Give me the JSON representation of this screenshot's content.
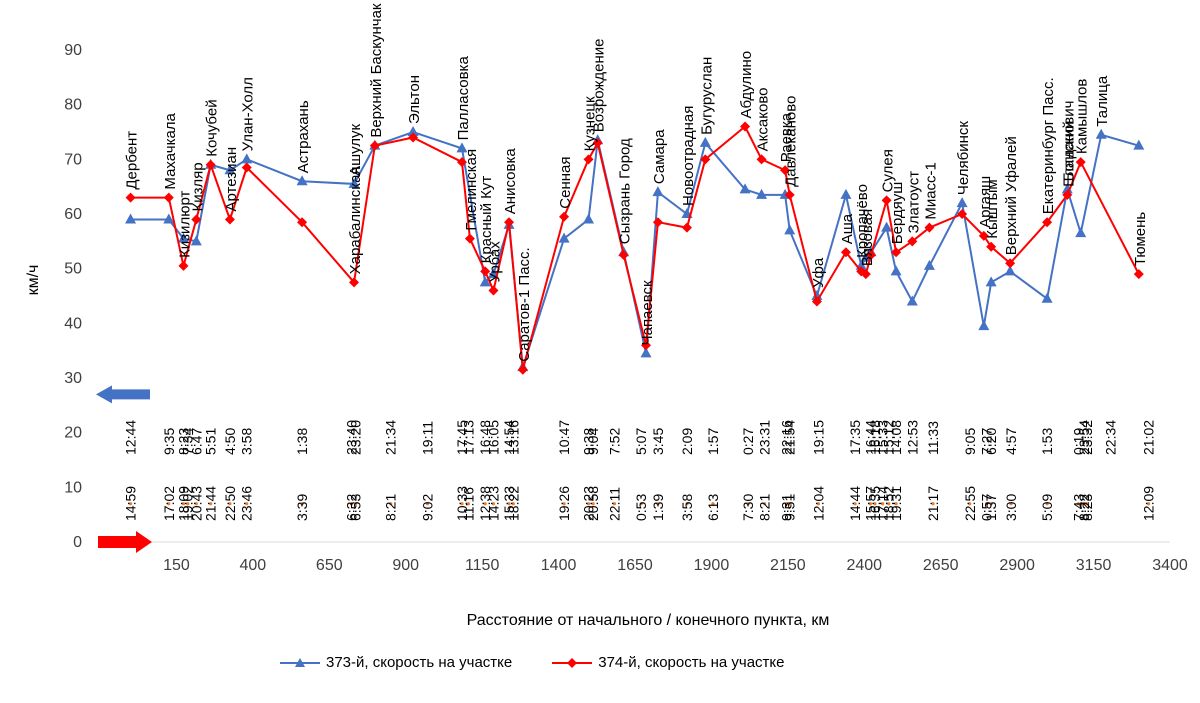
{
  "chart_data": {
    "type": "line",
    "title": "",
    "xlabel": "Расстояние от начального / конечного пункта, км",
    "ylabel": "км/ч",
    "xlim": [
      -100,
      3400
    ],
    "ylim": [
      0,
      90
    ],
    "xticks": [
      150,
      400,
      650,
      900,
      1150,
      1400,
      1650,
      1900,
      2150,
      2400,
      2650,
      2900,
      3150,
      3400
    ],
    "yticks": [
      0,
      10,
      20,
      30,
      40,
      50,
      60,
      70,
      80,
      90
    ],
    "grid": false,
    "legend": "bottom",
    "colors": {
      "373": "#4472C4",
      "374": "#FF0000",
      "time_373": "#000000",
      "time_374": "#ED7D31"
    },
    "series": [
      {
        "name": "373-й, скорость на участке",
        "marker": "triangle",
        "points": [
          [
            0,
            59
          ],
          [
            125,
            59
          ],
          [
            173,
            55.5
          ],
          [
            215,
            55
          ],
          [
            262,
            69
          ],
          [
            325,
            68
          ],
          [
            380,
            70
          ],
          [
            561,
            66
          ],
          [
            731,
            65.5
          ],
          [
            799,
            72.5
          ],
          [
            924,
            75
          ],
          [
            1084,
            72
          ],
          [
            1160,
            47.5
          ],
          [
            1187,
            49
          ],
          [
            1238,
            58
          ],
          [
            1283,
            32
          ],
          [
            1418,
            55.5
          ],
          [
            1498,
            59
          ],
          [
            1528,
            73.5
          ],
          [
            1613,
            53
          ],
          [
            1686,
            34.5
          ],
          [
            1725,
            64
          ],
          [
            1820,
            60
          ],
          [
            1880,
            73
          ],
          [
            2010,
            64.5
          ],
          [
            2064,
            63.5
          ],
          [
            2141,
            63.5
          ],
          [
            2156,
            57
          ],
          [
            2245,
            45
          ],
          [
            2340,
            63.5
          ],
          [
            2390,
            50.5
          ],
          [
            2405,
            52
          ],
          [
            2422,
            53
          ],
          [
            2473,
            57.5
          ],
          [
            2504,
            49.5
          ],
          [
            2557,
            44
          ],
          [
            2613,
            50.5
          ],
          [
            2720,
            62
          ],
          [
            2791,
            39.5
          ],
          [
            2815,
            47.5
          ],
          [
            2877,
            49.5
          ],
          [
            2998,
            44.5
          ],
          [
            3064,
            64.5
          ],
          [
            3108,
            56.5
          ],
          [
            3175,
            74.5
          ],
          [
            3298,
            72.5
          ]
        ]
      },
      {
        "name": "374-й, скорость на участке",
        "marker": "diamond",
        "points": [
          [
            0,
            63
          ],
          [
            125,
            63
          ],
          [
            173,
            50.5
          ],
          [
            215,
            59
          ],
          [
            262,
            69
          ],
          [
            325,
            59
          ],
          [
            380,
            68.5
          ],
          [
            561,
            58.5
          ],
          [
            731,
            47.5
          ],
          [
            799,
            72.5
          ],
          [
            924,
            74
          ],
          [
            1084,
            69.5
          ],
          [
            1110,
            55.5
          ],
          [
            1160,
            49.5
          ],
          [
            1187,
            46
          ],
          [
            1238,
            58.5
          ],
          [
            1283,
            31.5
          ],
          [
            1418,
            59.5
          ],
          [
            1498,
            70
          ],
          [
            1528,
            73
          ],
          [
            1613,
            52.5
          ],
          [
            1686,
            36
          ],
          [
            1725,
            58.5
          ],
          [
            1820,
            57.5
          ],
          [
            1880,
            70
          ],
          [
            2010,
            76
          ],
          [
            2064,
            70
          ],
          [
            2141,
            68
          ],
          [
            2156,
            63.5
          ],
          [
            2245,
            44
          ],
          [
            2340,
            53
          ],
          [
            2390,
            49.5
          ],
          [
            2405,
            49
          ],
          [
            2422,
            52.5
          ],
          [
            2473,
            62.5
          ],
          [
            2504,
            53
          ],
          [
            2557,
            55
          ],
          [
            2613,
            57.5
          ],
          [
            2720,
            60
          ],
          [
            2791,
            56
          ],
          [
            2815,
            54
          ],
          [
            2877,
            51
          ],
          [
            2998,
            58.5
          ],
          [
            3064,
            63.5
          ],
          [
            3108,
            69.5
          ],
          [
            3298,
            49
          ]
        ]
      }
    ],
    "stations": [
      {
        "name": "Дербент",
        "x": 0,
        "y": 63,
        "above": true
      },
      {
        "name": "Махачкала",
        "x": 125,
        "y": 63,
        "above": true
      },
      {
        "name": "Кизилюрт",
        "x": 173,
        "y": 50.5,
        "above": true
      },
      {
        "name": "Кизляр",
        "x": 215,
        "y": 59,
        "above": true
      },
      {
        "name": "Кочубей",
        "x": 262,
        "y": 69,
        "above": true
      },
      {
        "name": "Артезиан",
        "x": 325,
        "y": 59,
        "above": true
      },
      {
        "name": "Улан-Холл",
        "x": 380,
        "y": 70,
        "above": true
      },
      {
        "name": "Астрахань",
        "x": 561,
        "y": 66,
        "above": true
      },
      {
        "name": "Ашулук",
        "x": 731,
        "y": 65.5,
        "above": true
      },
      {
        "name": "Харабалинская",
        "x": 731,
        "y": 47.5,
        "above": true
      },
      {
        "name": "Верхний Баскунчак",
        "x": 799,
        "y": 72.5,
        "above": true
      },
      {
        "name": "Эльтон",
        "x": 924,
        "y": 75,
        "above": true
      },
      {
        "name": "Палласовка",
        "x": 1084,
        "y": 72,
        "above": true
      },
      {
        "name": "Гмелинская",
        "x": 1110,
        "y": 55.5,
        "above": true
      },
      {
        "name": "Красный Кут",
        "x": 1160,
        "y": 49.5,
        "above": true
      },
      {
        "name": "Урбах",
        "x": 1187,
        "y": 46,
        "above": true
      },
      {
        "name": "Анисовка",
        "x": 1238,
        "y": 58.5,
        "above": true
      },
      {
        "name": "Саратов-1 Пасс.",
        "x": 1283,
        "y": 31.5,
        "above": true
      },
      {
        "name": "Сенная",
        "x": 1418,
        "y": 59.5,
        "above": true
      },
      {
        "name": "Кузнецк",
        "x": 1498,
        "y": 70,
        "above": true
      },
      {
        "name": "Возрождение",
        "x": 1528,
        "y": 73.5,
        "above": true
      },
      {
        "name": "Сызрань Город",
        "x": 1613,
        "y": 53,
        "above": true
      },
      {
        "name": "Чапаевск",
        "x": 1686,
        "y": 34.5,
        "above": true
      },
      {
        "name": "Самара",
        "x": 1725,
        "y": 64,
        "above": true
      },
      {
        "name": "Новоотрадная",
        "x": 1820,
        "y": 60,
        "above": true
      },
      {
        "name": "Бугуруслан",
        "x": 1880,
        "y": 73,
        "above": true
      },
      {
        "name": "Абдулино",
        "x": 2010,
        "y": 76,
        "above": true
      },
      {
        "name": "Аксаково",
        "x": 2064,
        "y": 70,
        "above": true
      },
      {
        "name": "Раевка",
        "x": 2141,
        "y": 68,
        "above": true
      },
      {
        "name": "Давлеканово",
        "x": 2156,
        "y": 63.5,
        "above": true
      },
      {
        "name": "Уфа",
        "x": 2245,
        "y": 45,
        "above": true
      },
      {
        "name": "Аша",
        "x": 2340,
        "y": 53,
        "above": true
      },
      {
        "name": "Кропачёво",
        "x": 2390,
        "y": 50.5,
        "above": true
      },
      {
        "name": "Вязовая",
        "x": 2405,
        "y": 49,
        "above": true
      },
      {
        "name": "Сулея",
        "x": 2473,
        "y": 62.5,
        "above": true
      },
      {
        "name": "Бердяуш",
        "x": 2504,
        "y": 53,
        "above": true
      },
      {
        "name": "Златоуст",
        "x": 2557,
        "y": 55,
        "above": true
      },
      {
        "name": "Миасс-1",
        "x": 2613,
        "y": 57.5,
        "above": true
      },
      {
        "name": "Челябинск",
        "x": 2720,
        "y": 62,
        "above": true
      },
      {
        "name": "Аргаяш",
        "x": 2791,
        "y": 56,
        "above": true
      },
      {
        "name": "Кыштым",
        "x": 2815,
        "y": 54,
        "above": true
      },
      {
        "name": "Верхний Уфалей",
        "x": 2877,
        "y": 51,
        "above": true
      },
      {
        "name": "Екатеринбург Пасс.",
        "x": 2998,
        "y": 58.5,
        "above": true
      },
      {
        "name": "Богданович",
        "x": 3064,
        "y": 64.5,
        "above": true
      },
      {
        "name": "Еланский",
        "x": 3064,
        "y": 63.5,
        "above": true
      },
      {
        "name": "Камышлов",
        "x": 3108,
        "y": 69.5,
        "above": true
      },
      {
        "name": "Талица",
        "x": 3175,
        "y": 74.5,
        "above": true
      },
      {
        "name": "Тюмень",
        "x": 3298,
        "y": 49,
        "above": true
      }
    ],
    "times_373": [
      {
        "x": 0,
        "t": "12:44"
      },
      {
        "x": 125,
        "t": "9:35"
      },
      {
        "x": 173,
        "t": "8:23"
      },
      {
        "x": 187,
        "t": "7:34"
      },
      {
        "x": 215,
        "t": "6:47"
      },
      {
        "x": 262,
        "t": "5:51"
      },
      {
        "x": 325,
        "t": "4:50"
      },
      {
        "x": 380,
        "t": "3:58"
      },
      {
        "x": 561,
        "t": "1:38"
      },
      {
        "x": 722,
        "t": "23:40"
      },
      {
        "x": 736,
        "t": "23:20"
      },
      {
        "x": 851,
        "t": "21:34"
      },
      {
        "x": 971,
        "t": "19:11"
      },
      {
        "x": 1084,
        "t": "17:45"
      },
      {
        "x": 1105,
        "t": "17:13"
      },
      {
        "x": 1160,
        "t": "16:48"
      },
      {
        "x": 1187,
        "t": "16:05"
      },
      {
        "x": 1238,
        "t": "14:54"
      },
      {
        "x": 1252,
        "t": "13:16"
      },
      {
        "x": 1418,
        "t": "10:47"
      },
      {
        "x": 1498,
        "t": "9:38"
      },
      {
        "x": 1513,
        "t": "9:04"
      },
      {
        "x": 1583,
        "t": "7:52"
      },
      {
        "x": 1670,
        "t": "5:07"
      },
      {
        "x": 1725,
        "t": "3:45"
      },
      {
        "x": 1820,
        "t": "2:09"
      },
      {
        "x": 1905,
        "t": "1:57"
      },
      {
        "x": 2020,
        "t": "0:27"
      },
      {
        "x": 2074,
        "t": "23:31"
      },
      {
        "x": 2146,
        "t": "22:16"
      },
      {
        "x": 2156,
        "t": "21:54"
      },
      {
        "x": 2250,
        "t": "19:15"
      },
      {
        "x": 2370,
        "t": "17:35"
      },
      {
        "x": 2420,
        "t": "16:44"
      },
      {
        "x": 2435,
        "t": "16:18"
      },
      {
        "x": 2460,
        "t": "15:33"
      },
      {
        "x": 2480,
        "t": "15:12"
      },
      {
        "x": 2504,
        "t": "14:08"
      },
      {
        "x": 2557,
        "t": "12:53"
      },
      {
        "x": 2625,
        "t": "11:33"
      },
      {
        "x": 2745,
        "t": "9:05"
      },
      {
        "x": 2800,
        "t": "7:27"
      },
      {
        "x": 2815,
        "t": "6:20"
      },
      {
        "x": 2880,
        "t": "4:57"
      },
      {
        "x": 2998,
        "t": "1:53"
      },
      {
        "x": 3100,
        "t": "0:19"
      },
      {
        "x": 3118,
        "t": "23:54"
      },
      {
        "x": 3128,
        "t": "23:32"
      },
      {
        "x": 3205,
        "t": "22:34"
      },
      {
        "x": 3330,
        "t": "21:02"
      }
    ],
    "times_374": [
      {
        "x": 0,
        "t": "14:59"
      },
      {
        "x": 125,
        "t": "17:02"
      },
      {
        "x": 173,
        "t": "18:09"
      },
      {
        "x": 187,
        "t": "19:02"
      },
      {
        "x": 215,
        "t": "20:43"
      },
      {
        "x": 262,
        "t": "21:44"
      },
      {
        "x": 325,
        "t": "22:50"
      },
      {
        "x": 380,
        "t": "23:46"
      },
      {
        "x": 561,
        "t": "3:39"
      },
      {
        "x": 722,
        "t": "6:32"
      },
      {
        "x": 736,
        "t": "6:53"
      },
      {
        "x": 851,
        "t": "8:21"
      },
      {
        "x": 971,
        "t": "9:02"
      },
      {
        "x": 1084,
        "t": "10:33"
      },
      {
        "x": 1105,
        "t": "11:16"
      },
      {
        "x": 1160,
        "t": "12:38"
      },
      {
        "x": 1187,
        "t": "14:23"
      },
      {
        "x": 1238,
        "t": "15:33"
      },
      {
        "x": 1252,
        "t": "18:22"
      },
      {
        "x": 1418,
        "t": "19:26"
      },
      {
        "x": 1498,
        "t": "20:23"
      },
      {
        "x": 1513,
        "t": "20:58"
      },
      {
        "x": 1583,
        "t": "22:11"
      },
      {
        "x": 1670,
        "t": "0:53"
      },
      {
        "x": 1725,
        "t": "1:39"
      },
      {
        "x": 1820,
        "t": "3:58"
      },
      {
        "x": 1905,
        "t": "6:13"
      },
      {
        "x": 2020,
        "t": "7:30"
      },
      {
        "x": 2074,
        "t": "8:21"
      },
      {
        "x": 2146,
        "t": "9:31"
      },
      {
        "x": 2156,
        "t": "9:51"
      },
      {
        "x": 2250,
        "t": "12:04"
      },
      {
        "x": 2370,
        "t": "14:44"
      },
      {
        "x": 2420,
        "t": "15:57"
      },
      {
        "x": 2435,
        "t": "16:35"
      },
      {
        "x": 2460,
        "t": "17:14"
      },
      {
        "x": 2480,
        "t": "18:52"
      },
      {
        "x": 2504,
        "t": "19:31"
      },
      {
        "x": 2625,
        "t": "21:17"
      },
      {
        "x": 2745,
        "t": "22:55"
      },
      {
        "x": 2800,
        "t": "0:57"
      },
      {
        "x": 2815,
        "t": "1:37"
      },
      {
        "x": 2880,
        "t": "3:00"
      },
      {
        "x": 2998,
        "t": "5:09"
      },
      {
        "x": 3100,
        "t": "7:43"
      },
      {
        "x": 3118,
        "t": "8:22"
      },
      {
        "x": 3128,
        "t": "8:23"
      },
      {
        "x": 3330,
        "t": "12:09"
      }
    ],
    "arrows": [
      {
        "series": "373",
        "direction": "left",
        "y": 27,
        "color": "#4472C4"
      },
      {
        "series": "374",
        "direction": "right",
        "y": 0,
        "color": "#FF0000"
      }
    ]
  }
}
